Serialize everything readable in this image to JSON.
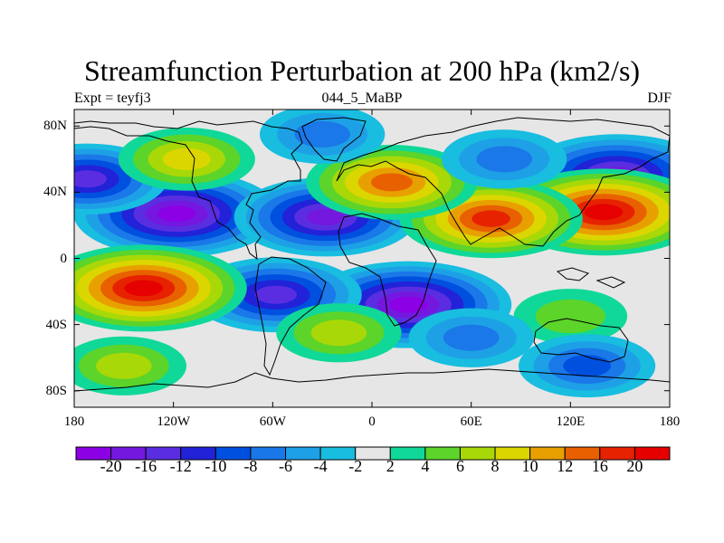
{
  "chart_data": {
    "type": "contour-map",
    "title": "Streamfunction Perturbation at 200 hPa (km2/s)",
    "subtitle_left": "Expt = teyfj3",
    "subtitle_center": "044_5_MaBP",
    "subtitle_right": "DJF",
    "x_ticks": [
      "180",
      "120W",
      "60W",
      "0",
      "60E",
      "120E",
      "180"
    ],
    "x_tick_values": [
      -180,
      -120,
      -60,
      0,
      60,
      120,
      180
    ],
    "y_ticks": [
      "80N",
      "40N",
      "0",
      "40S",
      "80S"
    ],
    "y_tick_values": [
      80,
      40,
      0,
      -40,
      -80
    ],
    "xlim": [
      -180,
      180
    ],
    "ylim": [
      -90,
      90
    ],
    "colorbar": {
      "labels": [
        "-20",
        "-16",
        "-12",
        "-10",
        "-8",
        "-6",
        "-4",
        "-2",
        "2",
        "4",
        "6",
        "8",
        "10",
        "12",
        "16",
        "20"
      ],
      "colors": [
        "#8c00e6",
        "#7418e0",
        "#5a2ee0",
        "#2222d8",
        "#0050e0",
        "#1a78e8",
        "#1ea0e6",
        "#18bde0",
        "#e6e6e6",
        "#10d898",
        "#5cd42a",
        "#a8d808",
        "#dcd600",
        "#e8a000",
        "#e86000",
        "#e62200",
        "#e60000"
      ]
    },
    "anomalies": [
      {
        "lon": -118,
        "lat": 27,
        "value": -20
      },
      {
        "lon": -28,
        "lat": 25,
        "value": -16
      },
      {
        "lon": 22,
        "lat": -28,
        "value": -20
      },
      {
        "lon": -58,
        "lat": -22,
        "value": -14
      },
      {
        "lon": 148,
        "lat": 50,
        "value": -18
      },
      {
        "lon": -172,
        "lat": 48,
        "value": -12
      },
      {
        "lon": -138,
        "lat": -18,
        "value": 20
      },
      {
        "lon": 140,
        "lat": 28,
        "value": 20
      },
      {
        "lon": 72,
        "lat": 24,
        "value": 16
      },
      {
        "lon": 12,
        "lat": 46,
        "value": 14
      },
      {
        "lon": -112,
        "lat": 60,
        "value": 8
      },
      {
        "lon": -150,
        "lat": -65,
        "value": 6
      },
      {
        "lon": 120,
        "lat": -35,
        "value": 4
      },
      {
        "lon": -20,
        "lat": -45,
        "value": 6
      },
      {
        "lon": 60,
        "lat": -48,
        "value": -6
      },
      {
        "lon": 130,
        "lat": -65,
        "value": -8
      },
      {
        "lon": -30,
        "lat": 75,
        "value": -6
      },
      {
        "lon": 80,
        "lat": 60,
        "value": -6
      }
    ]
  }
}
